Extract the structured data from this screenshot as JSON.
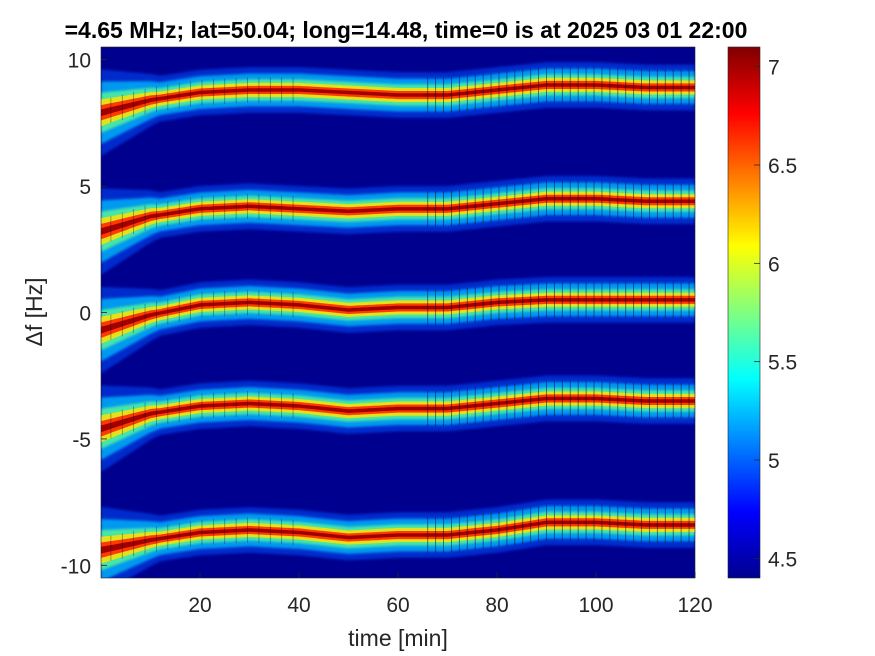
{
  "chart_data": {
    "type": "heatmap",
    "title": "=4.65 MHz;  lat=50.04; long=14.48, time=0 is at 2025 03 01 22:00",
    "xlabel": "time [min]",
    "ylabel": "Δf [Hz]",
    "xlim": [
      0,
      120
    ],
    "ylim": [
      -10.5,
      10.5
    ],
    "xticks": [
      20,
      40,
      60,
      80,
      100,
      120
    ],
    "yticks": [
      -10,
      -5,
      0,
      5,
      10
    ],
    "colorbar": {
      "min": 4.4,
      "max": 7.1,
      "ticks": [
        4.5,
        5,
        5.5,
        6,
        6.5,
        7
      ],
      "colormap": "jet"
    },
    "background_color": "#00008f",
    "grid": false,
    "series": [
      {
        "time": [
          0,
          10,
          20,
          30,
          40,
          50,
          60,
          70,
          80,
          90,
          100,
          110,
          120
        ],
        "freq": [
          7.9,
          8.4,
          8.7,
          8.8,
          8.8,
          8.7,
          8.6,
          8.6,
          8.8,
          9.0,
          9.0,
          8.9,
          8.9
        ]
      },
      {
        "time": [
          0,
          10,
          20,
          30,
          40,
          50,
          60,
          70,
          80,
          90,
          100,
          110,
          120
        ],
        "freq": [
          3.2,
          3.8,
          4.1,
          4.2,
          4.1,
          4.0,
          4.1,
          4.1,
          4.3,
          4.5,
          4.5,
          4.4,
          4.4
        ]
      },
      {
        "time": [
          0,
          10,
          20,
          30,
          40,
          50,
          60,
          70,
          80,
          90,
          100,
          110,
          120
        ],
        "freq": [
          -0.7,
          -0.1,
          0.3,
          0.4,
          0.3,
          0.1,
          0.2,
          0.2,
          0.4,
          0.5,
          0.5,
          0.5,
          0.5
        ]
      },
      {
        "time": [
          0,
          10,
          20,
          30,
          40,
          50,
          60,
          70,
          80,
          90,
          100,
          110,
          120
        ],
        "freq": [
          -4.6,
          -4.0,
          -3.7,
          -3.6,
          -3.7,
          -3.9,
          -3.8,
          -3.8,
          -3.6,
          -3.4,
          -3.4,
          -3.5,
          -3.5
        ]
      },
      {
        "time": [
          0,
          10,
          20,
          30,
          40,
          50,
          60,
          70,
          80,
          90,
          100,
          110,
          120
        ],
        "freq": [
          -9.4,
          -9.0,
          -8.7,
          -8.6,
          -8.7,
          -8.9,
          -8.8,
          -8.8,
          -8.6,
          -8.3,
          -8.3,
          -8.4,
          -8.4
        ]
      }
    ]
  }
}
